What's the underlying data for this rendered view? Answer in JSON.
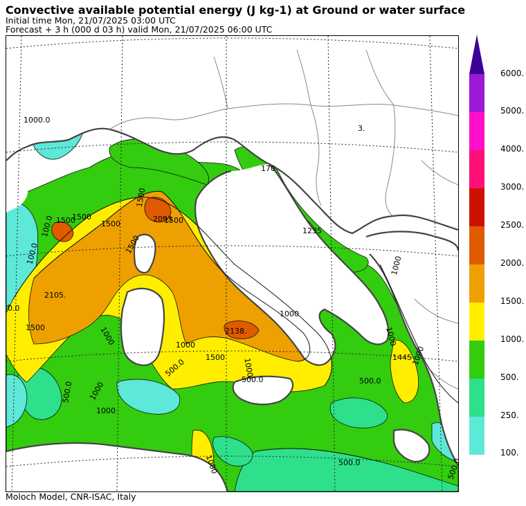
{
  "header": {
    "title": "Convective available potential energy (J kg-1) at Ground or water surface",
    "initial_time": "Initial time  Mon, 21/07/2025  03:00 UTC",
    "forecast": "Forecast  +   3 h  (000 d 03 h)  valid Mon, 21/07/2025 06:00 UTC"
  },
  "footer": {
    "credit": "Moloch Model, CNR-ISAC, Italy"
  },
  "colors": {
    "c100": "#5ee8d8",
    "c250": "#2ee08c",
    "c500": "#33cc0f",
    "c1000": "#ffee00",
    "c1500": "#eea000",
    "c2000": "#e05a00",
    "c2500": "#cc1100",
    "c3000": "#ff1077",
    "c4000": "#ff0fcc",
    "c5000": "#9a1ad6",
    "c6000": "#3d0099",
    "land": "#ffffff",
    "coast": "#444444",
    "border": "#888888",
    "grid": "#222222"
  },
  "colorbar": {
    "labels": [
      "6000.",
      "5000.",
      "4000.",
      "3000.",
      "2500.",
      "2000.",
      "1500.",
      "1000.",
      "500.",
      "250.",
      "100."
    ]
  },
  "map_labels": [
    "1000.0",
    "100.0",
    "100.0",
    "3.",
    "1500",
    "1500",
    "1500",
    "1500",
    "1500",
    "2093",
    "1500",
    "2105.",
    "1500",
    "1000",
    "1000",
    "1000",
    "1000",
    "1000",
    "1000",
    "2138.",
    "1235",
    "1000",
    "1000",
    "1500",
    "500.0",
    "500.0",
    "500.0",
    "500.0",
    "1445",
    "1000",
    "1000",
    "500.0",
    "500.0",
    "170",
    "0.0"
  ]
}
